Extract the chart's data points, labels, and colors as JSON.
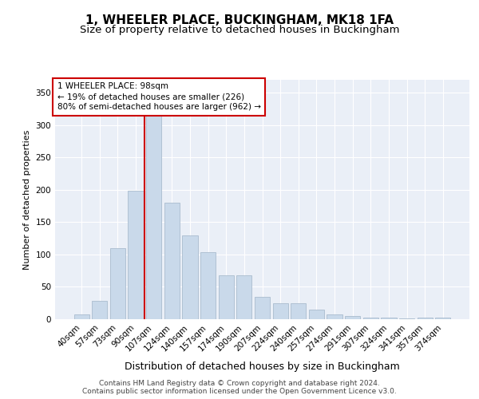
{
  "title1": "1, WHEELER PLACE, BUCKINGHAM, MK18 1FA",
  "title2": "Size of property relative to detached houses in Buckingham",
  "xlabel": "Distribution of detached houses by size in Buckingham",
  "ylabel": "Number of detached properties",
  "categories": [
    "40sqm",
    "57sqm",
    "73sqm",
    "90sqm",
    "107sqm",
    "124sqm",
    "140sqm",
    "157sqm",
    "174sqm",
    "190sqm",
    "207sqm",
    "224sqm",
    "240sqm",
    "257sqm",
    "274sqm",
    "291sqm",
    "307sqm",
    "324sqm",
    "341sqm",
    "357sqm",
    "374sqm"
  ],
  "bar_heights": [
    7,
    28,
    110,
    198,
    330,
    180,
    130,
    103,
    68,
    68,
    35,
    25,
    25,
    15,
    8,
    5,
    2,
    2,
    1,
    2,
    2
  ],
  "bar_color": "#c9d9ea",
  "bar_edge_color": "#aabcce",
  "vline_x": 3.5,
  "vline_color": "#cc0000",
  "annotation_text": "1 WHEELER PLACE: 98sqm\n← 19% of detached houses are smaller (226)\n80% of semi-detached houses are larger (962) →",
  "annotation_box_color": "#ffffff",
  "annotation_box_edge_color": "#cc0000",
  "ylim": [
    0,
    370
  ],
  "yticks": [
    0,
    50,
    100,
    150,
    200,
    250,
    300,
    350
  ],
  "footer1": "Contains HM Land Registry data © Crown copyright and database right 2024.",
  "footer2": "Contains public sector information licensed under the Open Government Licence v3.0.",
  "plot_background": "#eaeff7",
  "title1_fontsize": 11,
  "title2_fontsize": 9.5,
  "xlabel_fontsize": 9,
  "ylabel_fontsize": 8,
  "footer_fontsize": 6.5,
  "tick_fontsize": 7.5
}
